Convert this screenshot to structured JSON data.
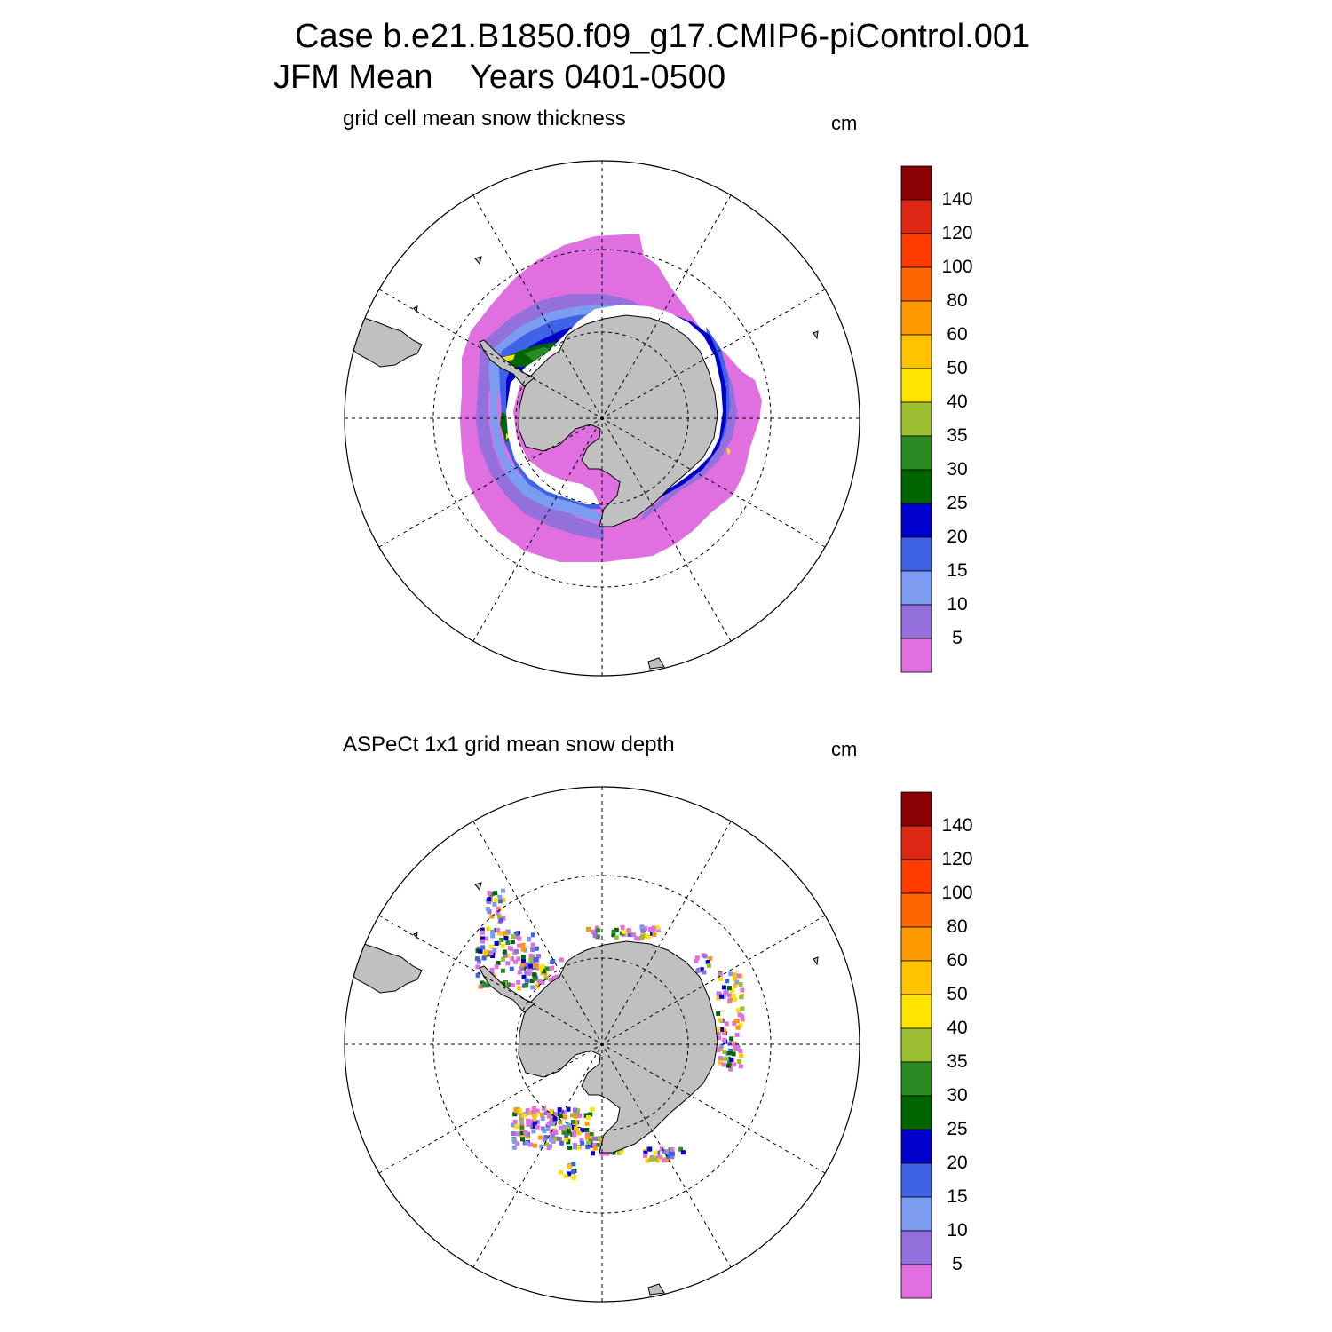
{
  "figure": {
    "title_line1": "Case b.e21.B1850.f09_g17.CMIP6-piControl.001",
    "title_line2": "JFM Mean    Years 0401-0500"
  },
  "panels": [
    {
      "title": "grid cell mean snow thickness",
      "units": "cm"
    },
    {
      "title": "ASPeCt 1x1 grid mean snow depth",
      "units": "cm"
    }
  ],
  "colorbar": {
    "labels": [
      "140",
      "120",
      "100",
      "80",
      "60",
      "50",
      "40",
      "35",
      "30",
      "25",
      "20",
      "15",
      "10",
      "5"
    ],
    "colors_top_to_bottom": [
      "#8b0000",
      "#dc2814",
      "#ff3c00",
      "#ff6600",
      "#ff9900",
      "#ffc300",
      "#ffe400",
      "#9abd32",
      "#2a8a23",
      "#006400",
      "#0000cd",
      "#3f63e6",
      "#7b9cf0",
      "#9370db",
      "#e070e0"
    ]
  },
  "map": {
    "land_color": "#c0c0c0",
    "projection": "south polar stereographic",
    "graticule": "dashed"
  },
  "chart_data": [
    {
      "type": "heatmap",
      "title": "grid cell mean snow thickness",
      "units": "cm",
      "color_levels": [
        5,
        10,
        15,
        20,
        25,
        30,
        35,
        40,
        50,
        60,
        80,
        100,
        120,
        140
      ],
      "region": "Southern Ocean sea ice, Antarctica"
    },
    {
      "type": "heatmap",
      "title": "ASPeCt 1x1 grid mean snow depth",
      "units": "cm",
      "color_levels": [
        5,
        10,
        15,
        20,
        25,
        30,
        35,
        40,
        50,
        60,
        80,
        100,
        120,
        140
      ],
      "region": "Southern Ocean sea ice, Antarctica"
    }
  ]
}
